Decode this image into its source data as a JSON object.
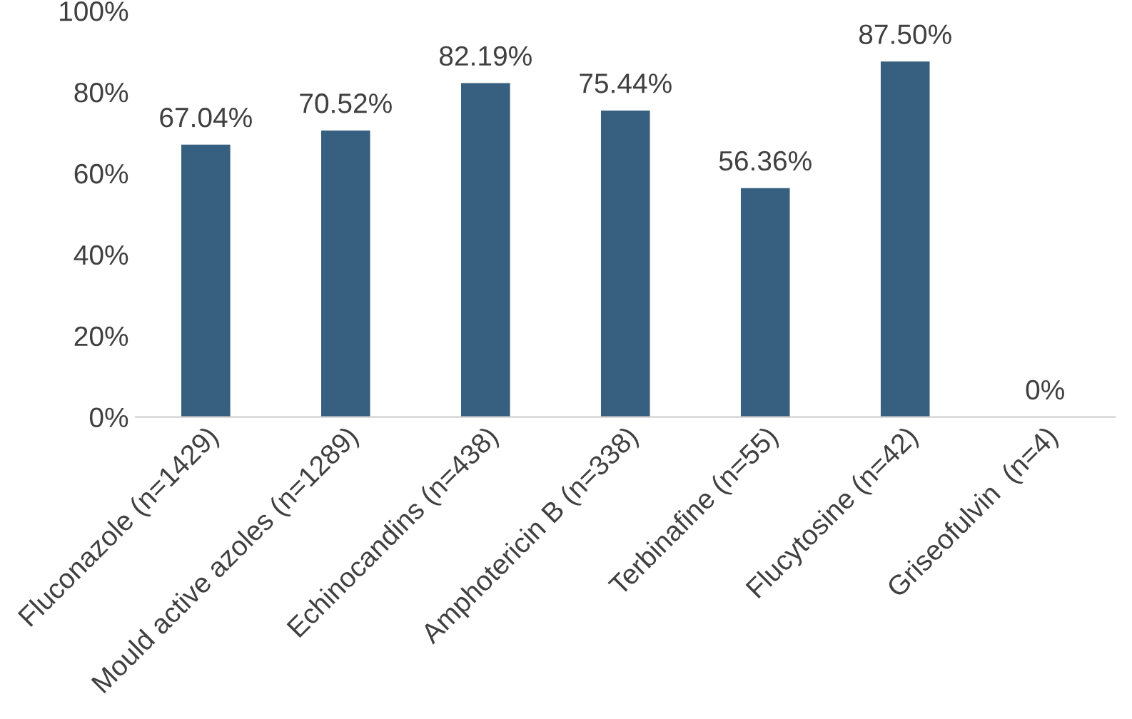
{
  "chart_data": {
    "type": "bar",
    "categories": [
      "Fluconazole (n=1429)",
      "Mould active azoles (n=1289)",
      "Echinocandins (n=438)",
      "Amphotericin B (n=338)",
      "Terbinafine (n=55)",
      "Flucytosine (n=42)",
      "Griseofulvin  (n=4)"
    ],
    "values": [
      67.04,
      70.52,
      82.19,
      75.44,
      56.36,
      87.5,
      0
    ],
    "color": "#375f7f",
    "value_labels": [
      "67.04%",
      "70.52%",
      "82.19%",
      "75.44%",
      "56.36%",
      "87.50%",
      "0%"
    ],
    "ylim": [
      0,
      100
    ],
    "yticks": [
      {
        "value": 0,
        "label": "0%"
      },
      {
        "value": 20,
        "label": "20%"
      },
      {
        "value": 40,
        "label": "40%"
      },
      {
        "value": 60,
        "label": "60%"
      },
      {
        "value": 80,
        "label": "80%"
      },
      {
        "value": 100,
        "label": "100%"
      }
    ],
    "grid": false,
    "legend": false
  }
}
